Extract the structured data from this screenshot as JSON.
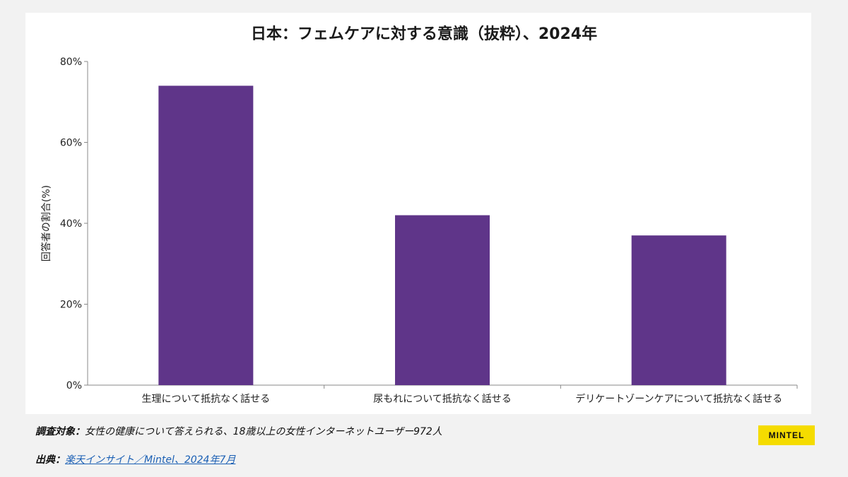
{
  "chart_data": {
    "type": "bar",
    "title": "日本：フェムケアに対する意識（抜粋）、2024年",
    "ylabel": "回答者の割合(%)",
    "xlabel": "",
    "categories": [
      "生理について抵抗なく話せる",
      "尿もれについて抵抗なく話せる",
      "デリケートゾーンケアについて抵抗なく話せる"
    ],
    "values": [
      74,
      42,
      37
    ],
    "ylim": [
      0,
      80
    ],
    "yticks": [
      0,
      20,
      40,
      60,
      80
    ],
    "ytick_labels": [
      "0%",
      "20%",
      "40%",
      "60%",
      "80%"
    ],
    "grid": false,
    "bar_color": "#5f3589"
  },
  "footer": {
    "subject_label": "調査対象：",
    "subject_text": "女性の健康について答えられる、18歳以上の女性インターネットユーザー972人",
    "source_label": "出典：",
    "source_link": "楽天インサイト／Mintel、2024年7月"
  },
  "logo": {
    "text": "MINTEL",
    "color": "#f5dc00"
  }
}
